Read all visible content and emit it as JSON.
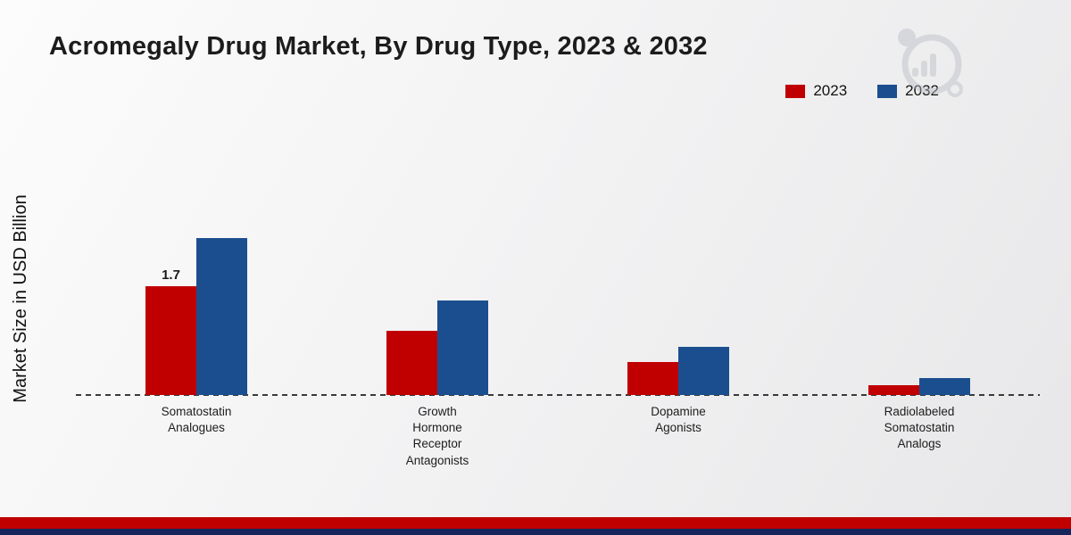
{
  "chart_data": {
    "type": "bar",
    "title": "Acromegaly Drug Market, By Drug Type, 2023 & 2032",
    "xlabel": "",
    "ylabel": "Market Size in USD Billion",
    "categories": [
      "Somatostatin\nAnalogues",
      "Growth\nHormone\nReceptor\nAntagonists",
      "Dopamine\nAgonists",
      "Radiolabeled\nSomatostatin\nAnalogs"
    ],
    "series": [
      {
        "name": "2023",
        "color": "#c00000",
        "values": [
          1.7,
          1.0,
          0.52,
          0.16
        ]
      },
      {
        "name": "2032",
        "color": "#1b4e8e",
        "values": [
          2.45,
          1.48,
          0.75,
          0.27
        ]
      }
    ],
    "value_labels": [
      {
        "series_index": 0,
        "category_index": 0,
        "text": "1.7"
      }
    ],
    "ylim": [
      0,
      4.5
    ],
    "grid": false,
    "legend_position": "top-right",
    "baseline_style": "dashed"
  },
  "footer": {
    "red_stripe_color": "#c00000",
    "navy_stripe_color": "#16265c"
  },
  "watermark": {
    "name": "market-research-logo",
    "color": "#b9bdc4"
  }
}
